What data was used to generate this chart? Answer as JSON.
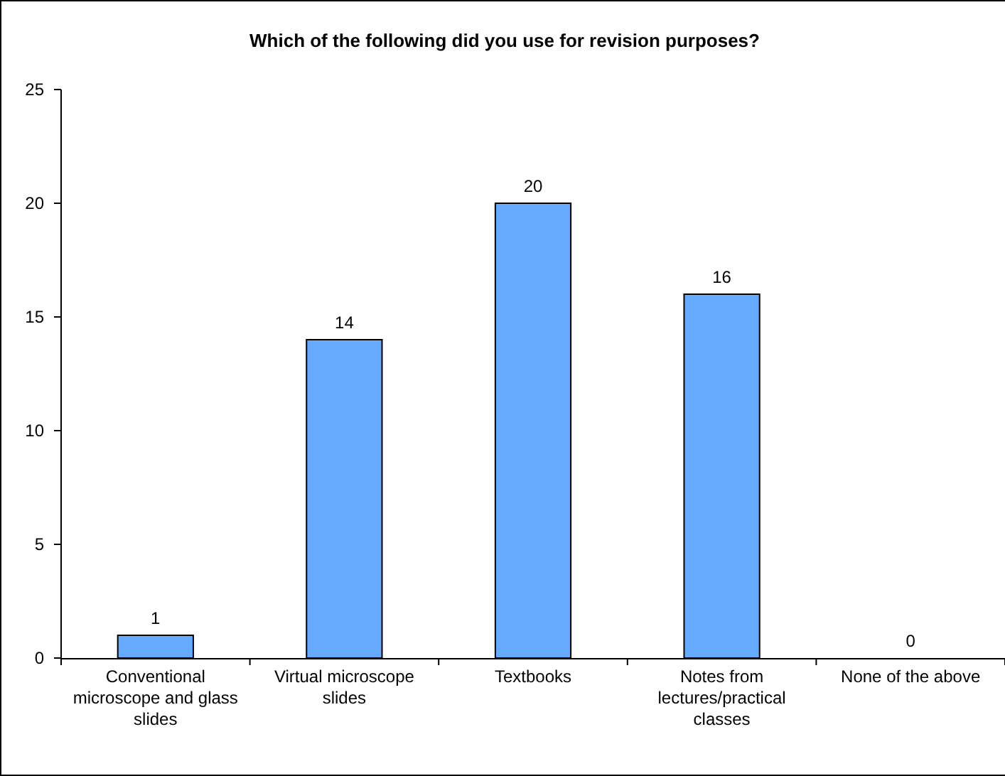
{
  "chart_data": {
    "type": "bar",
    "title": "Which of the following did you use for revision purposes?",
    "categories": [
      "Conventional microscope and glass slides",
      "Virtual microscope slides",
      "Textbooks",
      "Notes from lectures/practical classes",
      "None of the above"
    ],
    "values": [
      1,
      14,
      20,
      16,
      0
    ],
    "color": "#66aaff",
    "ylim": [
      0,
      25
    ],
    "yticks": [
      0,
      5,
      10,
      15,
      20,
      25
    ],
    "grid": false,
    "data_labels": true
  }
}
